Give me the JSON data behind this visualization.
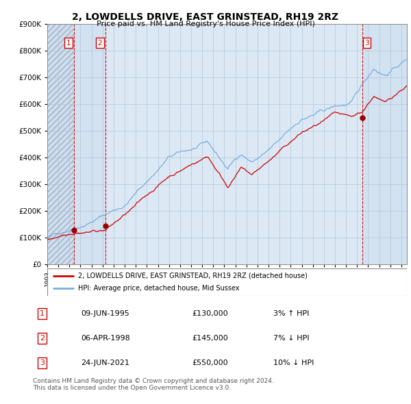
{
  "title": "2, LOWDELLS DRIVE, EAST GRINSTEAD, RH19 2RZ",
  "subtitle": "Price paid vs. HM Land Registry's House Price Index (HPI)",
  "ylim": [
    0,
    900000
  ],
  "yticks": [
    0,
    100000,
    200000,
    300000,
    400000,
    500000,
    600000,
    700000,
    800000,
    900000
  ],
  "xlim_start": 1993.0,
  "xlim_end": 2025.5,
  "sales": [
    {
      "label": "1",
      "date": 1995.44,
      "price": 130000
    },
    {
      "label": "2",
      "date": 1998.26,
      "price": 145000
    },
    {
      "label": "3",
      "date": 2021.48,
      "price": 550000
    }
  ],
  "vlines": [
    1995.44,
    1998.26,
    2021.48
  ],
  "legend_entries": [
    {
      "label": "2, LOWDELLS DRIVE, EAST GRINSTEAD, RH19 2RZ (detached house)",
      "color": "#cc0000"
    },
    {
      "label": "HPI: Average price, detached house, Mid Sussex",
      "color": "#7aaddc"
    }
  ],
  "table_rows": [
    {
      "num": "1",
      "date": "09-JUN-1995",
      "price": "£130,000",
      "hpi": "3% ↑ HPI"
    },
    {
      "num": "2",
      "date": "06-APR-1998",
      "price": "£145,000",
      "hpi": "7% ↓ HPI"
    },
    {
      "num": "3",
      "date": "24-JUN-2021",
      "price": "£550,000",
      "hpi": "10% ↓ HPI"
    }
  ],
  "footer": "Contains HM Land Registry data © Crown copyright and database right 2024.\nThis data is licensed under the Open Government Licence v3.0.",
  "bg_color": "#dce9f5",
  "grid_color": "#b0c4d8",
  "line_color_red": "#cc0000",
  "line_color_blue": "#7aaddc"
}
